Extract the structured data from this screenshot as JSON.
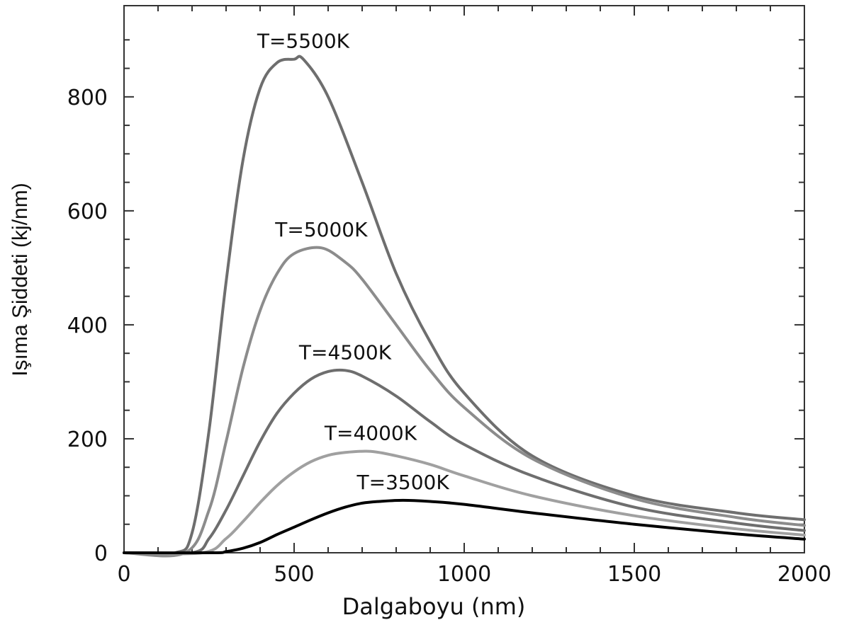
{
  "chart_data": {
    "type": "line",
    "xlabel": "Dalgaboyu (nm)",
    "ylabel": "Işıma Şiddeti (kj/nm)",
    "xlim": [
      0,
      2000
    ],
    "ylim": [
      0,
      960
    ],
    "x_ticks": [
      0,
      500,
      1000,
      1500,
      2000
    ],
    "y_ticks": [
      0,
      200,
      400,
      600,
      800
    ],
    "grid": false,
    "legend": "none",
    "series": [
      {
        "name": "T=5500K",
        "temperature": 5500,
        "peak_x": 527,
        "peak_y": 866,
        "end_y": 58,
        "color": "#6e6e6e",
        "x": [
          0,
          150,
          200,
          250,
          300,
          350,
          400,
          450,
          500,
          527,
          600,
          700,
          800,
          900,
          1000,
          1200,
          1500,
          1800,
          2000
        ],
        "y": [
          0,
          0,
          35,
          215,
          475,
          690,
          815,
          860,
          866,
          866,
          800,
          650,
          490,
          370,
          280,
          170,
          100,
          70,
          58
        ]
      },
      {
        "name": "T=5000K",
        "temperature": 5000,
        "peak_x": 580,
        "peak_y": 535,
        "end_y": 48,
        "color": "#8c8c8c",
        "x": [
          0,
          180,
          250,
          300,
          350,
          400,
          450,
          500,
          580,
          650,
          700,
          800,
          900,
          1000,
          1200,
          1500,
          1800,
          2000
        ],
        "y": [
          0,
          0,
          75,
          195,
          325,
          425,
          490,
          525,
          535,
          510,
          480,
          400,
          320,
          255,
          165,
          95,
          62,
          48
        ]
      },
      {
        "name": "T=4500K",
        "temperature": 4500,
        "peak_x": 650,
        "peak_y": 320,
        "end_y": 39,
        "color": "#6e6e6e",
        "x": [
          0,
          200,
          250,
          300,
          350,
          400,
          450,
          500,
          550,
          600,
          650,
          700,
          800,
          900,
          1000,
          1200,
          1500,
          1800,
          2000
        ],
        "y": [
          0,
          0,
          25,
          75,
          135,
          195,
          245,
          280,
          305,
          318,
          320,
          310,
          275,
          230,
          190,
          135,
          80,
          52,
          39
        ]
      },
      {
        "name": "T=4000K",
        "temperature": 4000,
        "peak_x": 725,
        "peak_y": 178,
        "end_y": 31,
        "color": "#a0a0a0",
        "x": [
          0,
          230,
          300,
          350,
          400,
          450,
          500,
          550,
          600,
          650,
          725,
          800,
          900,
          1000,
          1200,
          1500,
          1800,
          2000
        ],
        "y": [
          0,
          0,
          25,
          55,
          88,
          118,
          142,
          160,
          171,
          176,
          178,
          170,
          155,
          135,
          100,
          65,
          42,
          31
        ]
      },
      {
        "name": "T=3500K",
        "temperature": 3500,
        "peak_x": 820,
        "peak_y": 92,
        "end_y": 24,
        "color": "#000000",
        "x": [
          0,
          260,
          300,
          350,
          400,
          450,
          500,
          550,
          600,
          650,
          700,
          750,
          820,
          900,
          1000,
          1200,
          1500,
          1800,
          2000
        ],
        "y": [
          0,
          0,
          2,
          8,
          18,
          32,
          45,
          58,
          70,
          80,
          87,
          90,
          92,
          90,
          85,
          70,
          50,
          33,
          24
        ]
      }
    ]
  }
}
